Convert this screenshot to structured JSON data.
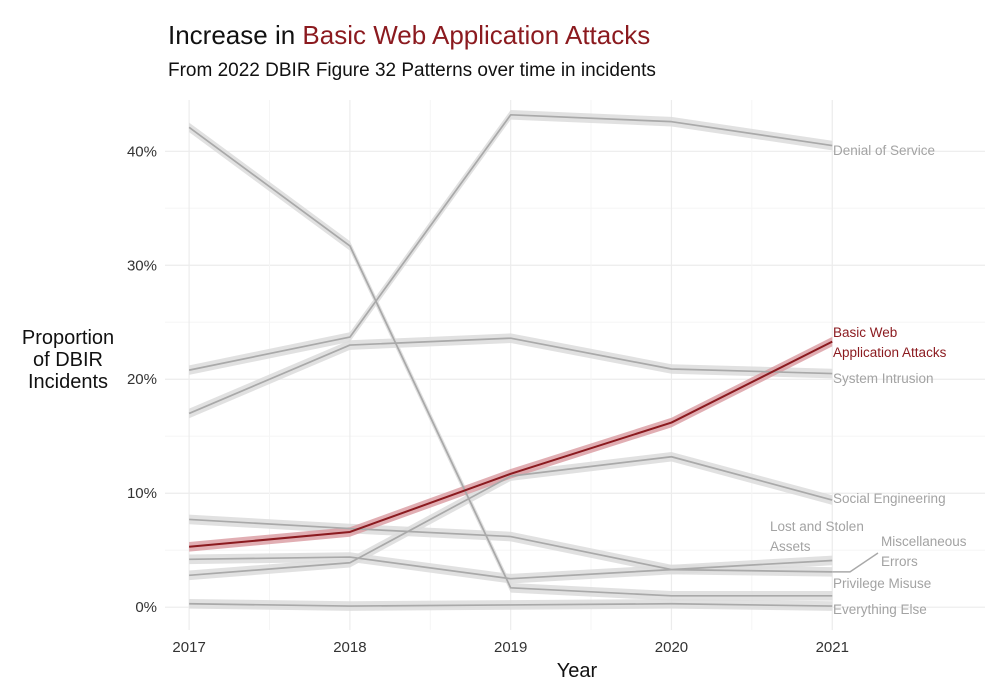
{
  "chart_data": {
    "type": "line",
    "title_prefix": "Increase in ",
    "title_highlight": "Basic Web Application Attacks",
    "subtitle": "From 2022 DBIR Figure 32 Patterns over time in incidents",
    "xlabel": "Year",
    "ylabel_lines": [
      "Proportion",
      "of DBIR",
      "Incidents"
    ],
    "x": [
      2017,
      2018,
      2019,
      2020,
      2021
    ],
    "xlim": [
      2016.85,
      2021.95
    ],
    "ylim": [
      -0.02,
      0.445
    ],
    "yticks": [
      0,
      0.1,
      0.2,
      0.3,
      0.4
    ],
    "ytick_labels": [
      "0%",
      "10%",
      "20%",
      "30%",
      "40%"
    ],
    "xtick_labels": [
      "2017",
      "2018",
      "2019",
      "2020",
      "2021"
    ],
    "grid": true,
    "highlight_color": "#8b1a1f",
    "muted_color": "#a9a9a9",
    "series": [
      {
        "name": "Denial of Service",
        "label_lines": [
          "Denial of Service"
        ],
        "values": [
          0.208,
          0.237,
          0.432,
          0.426,
          0.405
        ],
        "highlight": false
      },
      {
        "name": "System Intrusion",
        "label_lines": [
          "System Intrusion"
        ],
        "values": [
          0.17,
          0.23,
          0.236,
          0.209,
          0.205
        ],
        "highlight": false
      },
      {
        "name": "Social Engineering",
        "label_lines": [
          "Social Engineering"
        ],
        "values": [
          0.028,
          0.039,
          0.115,
          0.132,
          0.094
        ],
        "highlight": false
      },
      {
        "name": "Lost and Stolen Assets",
        "label_lines": [
          "Lost and Stolen",
          "Assets"
        ],
        "values": [
          0.042,
          0.044,
          0.025,
          0.033,
          0.041
        ],
        "highlight": false
      },
      {
        "name": "Miscellaneous Errors",
        "label_lines": [
          "Miscellaneous",
          "Errors"
        ],
        "values": [
          0.077,
          0.069,
          0.062,
          0.033,
          0.031
        ],
        "highlight": false
      },
      {
        "name": "Privilege Misuse",
        "label_lines": [
          "Privilege Misuse"
        ],
        "values": [
          0.421,
          0.317,
          0.017,
          0.01,
          0.01
        ],
        "highlight": false
      },
      {
        "name": "Everything Else",
        "label_lines": [
          "Everything Else"
        ],
        "values": [
          0.003,
          0.001,
          0.002,
          0.003,
          0.001
        ],
        "highlight": false
      },
      {
        "name": "Basic Web Application Attacks",
        "label_lines": [
          "Basic Web",
          "Application Attacks"
        ],
        "values": [
          0.053,
          0.066,
          0.117,
          0.162,
          0.233
        ],
        "highlight": true
      }
    ]
  }
}
